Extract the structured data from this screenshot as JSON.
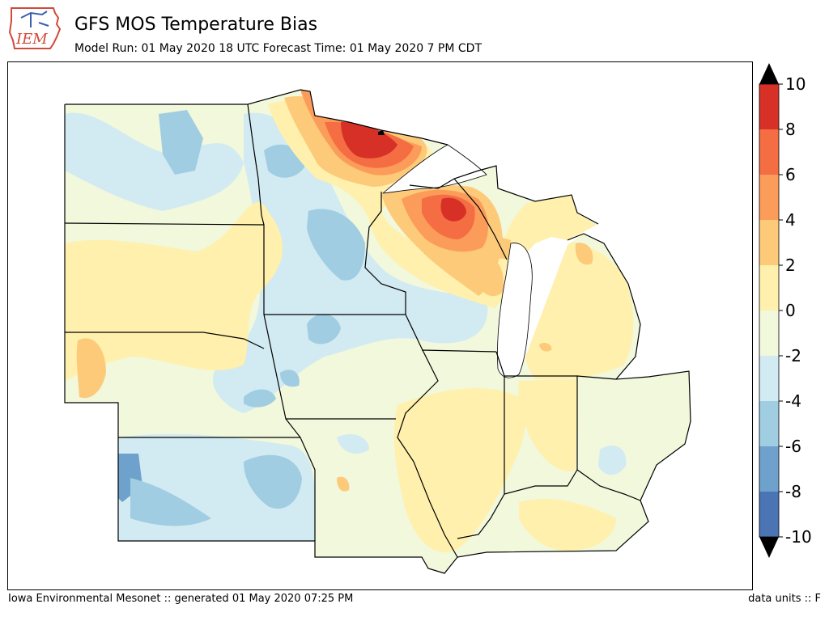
{
  "header": {
    "logo_text": "IEM",
    "title": "GFS MOS Temperature Bias",
    "subtitle": "Model Run: 01 May 2020 18 UTC Forecast Time: 01 May 2020 7 PM CDT"
  },
  "colorbar": {
    "ticks": [
      "10",
      "8",
      "6",
      "4",
      "2",
      "0",
      "-2",
      "-4",
      "-6",
      "-8",
      "-10"
    ],
    "bins": [
      {
        "range": [
          8,
          10
        ],
        "color": "#d73027"
      },
      {
        "range": [
          6,
          8
        ],
        "color": "#f46d43"
      },
      {
        "range": [
          4,
          6
        ],
        "color": "#fc9c5a"
      },
      {
        "range": [
          2,
          4
        ],
        "color": "#fdca7a"
      },
      {
        "range": [
          0,
          2
        ],
        "color": "#fff0ad"
      },
      {
        "range": [
          -2,
          0
        ],
        "color": "#f1f8dc"
      },
      {
        "range": [
          -4,
          -2
        ],
        "color": "#d2eaf2"
      },
      {
        "range": [
          -6,
          -4
        ],
        "color": "#a0cde2"
      },
      {
        "range": [
          -8,
          -6
        ],
        "color": "#6ea1cb"
      },
      {
        "range": [
          -10,
          -8
        ],
        "color": "#4a74b4"
      }
    ],
    "extend_colors": {
      "over": "#000000",
      "under": "#000000"
    }
  },
  "map": {
    "region": "Upper Midwest",
    "background_color": "#f1f8dc",
    "lake_color": "#ffffff"
  },
  "footer": {
    "left": "Iowa Environmental Mesonet :: generated 01 May 2020 07:25 PM",
    "right": "data units :: F"
  }
}
